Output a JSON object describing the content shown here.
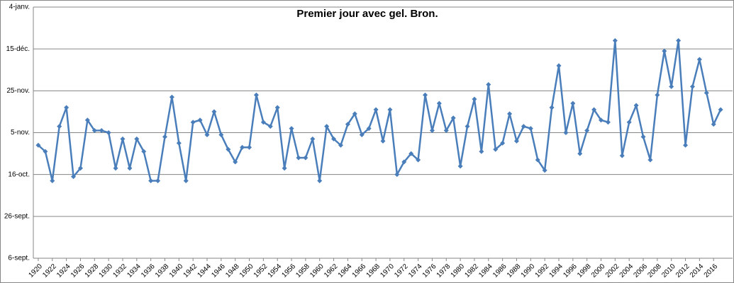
{
  "chart_data": {
    "type": "line",
    "title": "Premier jour avec gel. Bron.",
    "x": [
      1920,
      1921,
      1922,
      1923,
      1924,
      1925,
      1926,
      1927,
      1928,
      1929,
      1930,
      1931,
      1932,
      1933,
      1934,
      1935,
      1936,
      1937,
      1938,
      1939,
      1940,
      1941,
      1942,
      1943,
      1944,
      1945,
      1946,
      1947,
      1948,
      1949,
      1950,
      1951,
      1952,
      1953,
      1954,
      1955,
      1956,
      1957,
      1958,
      1959,
      1960,
      1961,
      1962,
      1963,
      1964,
      1965,
      1966,
      1967,
      1968,
      1969,
      1970,
      1971,
      1972,
      1973,
      1974,
      1975,
      1976,
      1977,
      1978,
      1979,
      1980,
      1981,
      1982,
      1983,
      1984,
      1985,
      1986,
      1987,
      1988,
      1989,
      1990,
      1991,
      1992,
      1993,
      1994,
      1995,
      1996,
      1997,
      1998,
      1999,
      2000,
      2001,
      2002,
      2003,
      2004,
      2005,
      2006,
      2007,
      2008,
      2009,
      2010,
      2011,
      2012,
      2013,
      2014,
      2015,
      2016,
      2017
    ],
    "series": [
      {
        "color": "#4a7ebb",
        "values": [
          60,
          57,
          43,
          69,
          78,
          45,
          49,
          72,
          67,
          67,
          66,
          49,
          63,
          49,
          63,
          57,
          43,
          43,
          64,
          83,
          61,
          43,
          71,
          72,
          65,
          76,
          65,
          58,
          52,
          59,
          59,
          84,
          71,
          69,
          78,
          49,
          68,
          54,
          54,
          63,
          43,
          69,
          63,
          60,
          70,
          75,
          65,
          68,
          77,
          62,
          77,
          46,
          52,
          56,
          53,
          84,
          67,
          80,
          67,
          73,
          50,
          69,
          82,
          57,
          89,
          58,
          61,
          75,
          62,
          69,
          68,
          53,
          48,
          78,
          98,
          66,
          80,
          56,
          67,
          77,
          72,
          71,
          110,
          55,
          71,
          79,
          64,
          53,
          84,
          105,
          88,
          110,
          60,
          88,
          101,
          85,
          70,
          77
        ]
      }
    ],
    "xlim": [
      1919.3,
      2018.7
    ],
    "xticks": [
      1920,
      1922,
      1924,
      1926,
      1928,
      1930,
      1932,
      1934,
      1936,
      1938,
      1940,
      1942,
      1944,
      1946,
      1948,
      1950,
      1952,
      1954,
      1956,
      1958,
      1960,
      1962,
      1964,
      1966,
      1968,
      1970,
      1972,
      1974,
      1976,
      1978,
      1980,
      1982,
      1984,
      1986,
      1988,
      1990,
      1992,
      1994,
      1996,
      1998,
      2000,
      2002,
      2004,
      2006,
      2008,
      2010,
      2012,
      2014,
      2016
    ],
    "ylim": [
      6,
      126
    ],
    "yticks": [
      {
        "value": 6,
        "label": "6-sept."
      },
      {
        "value": 26,
        "label": "26-sept."
      },
      {
        "value": 46,
        "label": "16-oct."
      },
      {
        "value": 66,
        "label": "5-nov."
      },
      {
        "value": 86,
        "label": "25-nov."
      },
      {
        "value": 106,
        "label": "15-déc."
      },
      {
        "value": 126,
        "label": "4-janv."
      }
    ],
    "grid": true
  }
}
